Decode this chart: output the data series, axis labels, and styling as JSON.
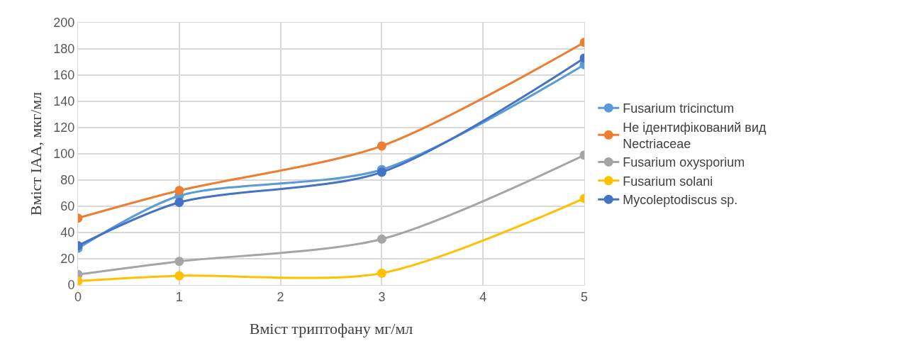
{
  "chart_data": {
    "type": "line",
    "x": [
      0,
      1,
      3,
      5
    ],
    "series": [
      {
        "name": "Fusarium tricinctum",
        "color": "#5b9bd5",
        "values": [
          28,
          68,
          88,
          168
        ]
      },
      {
        "name": "Не ідентифікований вид Nectriaceae",
        "color": "#ed7d31",
        "values": [
          51,
          72,
          106,
          185
        ]
      },
      {
        "name": "Fusarium oxysporium",
        "color": "#a5a5a5",
        "values": [
          8,
          18,
          35,
          99
        ]
      },
      {
        "name": "Fusarium solani",
        "color": "#ffc000",
        "values": [
          3,
          7,
          9,
          66
        ]
      },
      {
        "name": "Mycoleptodiscus sp.",
        "color": "#4472c4",
        "values": [
          30,
          63,
          86,
          173
        ]
      }
    ],
    "xlabel": "Вміст триптофану мг/мл",
    "ylabel": "Вміст IAA, мкг/мл",
    "xlim": [
      0,
      5
    ],
    "xticks": [
      0,
      1,
      2,
      3,
      4,
      5
    ],
    "ylim": [
      0,
      200
    ],
    "yticks": [
      0,
      20,
      40,
      60,
      80,
      100,
      120,
      140,
      160,
      180,
      200
    ],
    "grid": true,
    "legend": "right",
    "marker": "circle",
    "line_style": "solid"
  }
}
